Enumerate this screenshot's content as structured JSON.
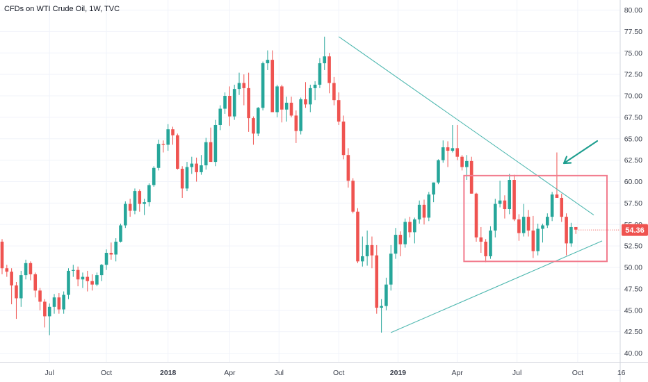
{
  "chart_data": {
    "type": "candlestick",
    "title": "CFDs on WTI Crude Oil, 1W, TVC",
    "y_ticks": [
      "80.00",
      "77.50",
      "75.00",
      "72.50",
      "70.00",
      "67.50",
      "65.00",
      "62.50",
      "60.00",
      "57.50",
      "55.00",
      "52.50",
      "50.00",
      "47.50",
      "45.00",
      "42.50",
      "40.00"
    ],
    "ylim": [
      38.8,
      81.1
    ],
    "x_ticks": [
      {
        "label": "Jul",
        "bold": false
      },
      {
        "label": "Oct",
        "bold": false
      },
      {
        "label": "2018",
        "bold": true
      },
      {
        "label": "Apr",
        "bold": false
      },
      {
        "label": "Jul",
        "bold": false
      },
      {
        "label": "Oct",
        "bold": false
      },
      {
        "label": "2019",
        "bold": true
      },
      {
        "label": "Apr",
        "bold": false
      },
      {
        "label": "Jul",
        "bold": false
      },
      {
        "label": "Oct",
        "bold": false
      },
      {
        "label": "16",
        "bold": false
      }
    ],
    "last_price": "54.36",
    "grid": true,
    "colors": {
      "up": "#26a69a",
      "down": "#ef5350",
      "trendline": "#4fb8b0",
      "box": "#f27c8e",
      "arrow": "#1e9e8f",
      "price_tag": "#ef5350"
    },
    "candles": [
      [
        53.0,
        53.3,
        49.2,
        49.9
      ],
      [
        49.9,
        50.3,
        48.9,
        49.5
      ],
      [
        49.5,
        49.9,
        45.7,
        47.9
      ],
      [
        47.9,
        48.3,
        44.0,
        46.4
      ],
      [
        46.4,
        49.6,
        45.4,
        49.1
      ],
      [
        49.1,
        50.9,
        48.6,
        50.5
      ],
      [
        50.5,
        50.7,
        48.5,
        49.2
      ],
      [
        49.2,
        49.4,
        46.5,
        47.3
      ],
      [
        47.3,
        47.6,
        45.0,
        46.0
      ],
      [
        46.0,
        46.3,
        43.0,
        44.3
      ],
      [
        44.3,
        45.8,
        42.1,
        45.4
      ],
      [
        45.4,
        46.9,
        44.6,
        46.5
      ],
      [
        46.5,
        47.0,
        44.6,
        45.1
      ],
      [
        45.1,
        47.2,
        44.6,
        46.8
      ],
      [
        46.8,
        49.9,
        46.3,
        49.6
      ],
      [
        49.6,
        50.3,
        48.9,
        49.7
      ],
      [
        49.7,
        50.1,
        47.8,
        48.6
      ],
      [
        48.6,
        49.4,
        47.6,
        48.9
      ],
      [
        48.9,
        49.6,
        47.2,
        48.4
      ],
      [
        48.4,
        49.2,
        47.3,
        48.0
      ],
      [
        48.0,
        49.4,
        47.8,
        49.1
      ],
      [
        49.1,
        50.4,
        48.4,
        50.3
      ],
      [
        50.3,
        52.1,
        49.7,
        51.7
      ],
      [
        51.7,
        52.9,
        50.9,
        51.5
      ],
      [
        51.5,
        53.4,
        50.7,
        53.0
      ],
      [
        53.0,
        55.1,
        52.9,
        54.9
      ],
      [
        54.9,
        57.7,
        54.6,
        57.4
      ],
      [
        57.4,
        58.0,
        55.9,
        56.6
      ],
      [
        56.6,
        59.2,
        56.2,
        58.9
      ],
      [
        58.9,
        59.1,
        56.5,
        57.4
      ],
      [
        57.4,
        58.0,
        56.1,
        57.6
      ],
      [
        57.6,
        59.8,
        57.1,
        59.6
      ],
      [
        59.6,
        61.8,
        59.4,
        61.6
      ],
      [
        61.6,
        64.9,
        61.3,
        64.4
      ],
      [
        64.4,
        64.8,
        63.4,
        64.3
      ],
      [
        64.3,
        66.7,
        63.6,
        66.1
      ],
      [
        66.1,
        66.4,
        64.3,
        65.4
      ],
      [
        65.4,
        65.6,
        61.4,
        61.5
      ],
      [
        61.5,
        61.8,
        58.1,
        59.2
      ],
      [
        59.2,
        62.3,
        58.9,
        61.7
      ],
      [
        61.7,
        62.9,
        60.9,
        62.1
      ],
      [
        62.1,
        62.8,
        60.0,
        61.1
      ],
      [
        61.1,
        63.1,
        60.8,
        61.9
      ],
      [
        61.9,
        65.1,
        61.4,
        64.6
      ],
      [
        64.6,
        66.3,
        62.5,
        62.3
      ],
      [
        62.3,
        67.2,
        61.8,
        66.6
      ],
      [
        66.6,
        68.9,
        66.0,
        68.5
      ],
      [
        68.5,
        70.4,
        67.9,
        70.0
      ],
      [
        70.0,
        71.1,
        66.5,
        67.6
      ],
      [
        67.6,
        71.3,
        67.2,
        70.8
      ],
      [
        70.8,
        72.7,
        70.1,
        71.5
      ],
      [
        71.5,
        72.5,
        68.9,
        70.9
      ],
      [
        70.9,
        72.7,
        65.8,
        67.4
      ],
      [
        67.4,
        67.6,
        64.3,
        65.6
      ],
      [
        65.6,
        68.7,
        65.3,
        68.6
      ],
      [
        68.6,
        74.0,
        68.3,
        73.8
      ],
      [
        73.8,
        75.3,
        73.0,
        74.2
      ],
      [
        74.2,
        75.3,
        68.3,
        68.1
      ],
      [
        68.1,
        71.3,
        67.5,
        71.1
      ],
      [
        71.1,
        71.3,
        66.9,
        68.4
      ],
      [
        68.4,
        69.9,
        67.0,
        69.2
      ],
      [
        69.2,
        69.9,
        67.5,
        67.7
      ],
      [
        67.7,
        68.3,
        64.5,
        65.9
      ],
      [
        65.9,
        69.8,
        65.5,
        69.6
      ],
      [
        69.6,
        71.6,
        68.6,
        69.0
      ],
      [
        69.0,
        71.3,
        68.1,
        70.9
      ],
      [
        70.9,
        71.7,
        69.5,
        71.3
      ],
      [
        71.3,
        74.4,
        70.9,
        73.8
      ],
      [
        73.8,
        76.9,
        73.0,
        74.6
      ],
      [
        74.6,
        75.0,
        70.3,
        71.5
      ],
      [
        71.5,
        72.2,
        68.9,
        69.5
      ],
      [
        69.5,
        70.4,
        66.6,
        67.0
      ],
      [
        67.0,
        67.7,
        62.6,
        63.1
      ],
      [
        63.1,
        63.9,
        59.3,
        60.1
      ],
      [
        60.1,
        60.4,
        56.3,
        56.5
      ],
      [
        56.5,
        56.9,
        50.5,
        50.7
      ],
      [
        50.7,
        53.6,
        50.1,
        51.3
      ],
      [
        51.3,
        54.3,
        50.2,
        52.6
      ],
      [
        52.6,
        53.6,
        49.9,
        51.4
      ],
      [
        51.4,
        52.6,
        44.6,
        45.3
      ],
      [
        45.3,
        46.3,
        42.4,
        45.5
      ],
      [
        45.5,
        48.8,
        45.0,
        48.0
      ],
      [
        48.0,
        52.6,
        47.3,
        51.6
      ],
      [
        51.6,
        54.6,
        51.0,
        53.8
      ],
      [
        53.8,
        54.2,
        51.3,
        52.7
      ],
      [
        52.7,
        55.7,
        52.3,
        55.3
      ],
      [
        55.3,
        55.9,
        53.5,
        54.1
      ],
      [
        54.1,
        55.8,
        52.8,
        55.6
      ],
      [
        55.6,
        57.8,
        55.1,
        57.3
      ],
      [
        57.3,
        57.9,
        55.0,
        55.8
      ],
      [
        55.8,
        58.8,
        55.4,
        58.5
      ],
      [
        58.5,
        59.9,
        57.6,
        59.9
      ],
      [
        59.9,
        62.6,
        59.7,
        62.5
      ],
      [
        62.5,
        64.8,
        62.2,
        64.0
      ],
      [
        64.0,
        64.7,
        61.7,
        63.6
      ],
      [
        63.6,
        66.6,
        63.4,
        63.9
      ],
      [
        63.9,
        66.6,
        62.5,
        62.9
      ],
      [
        62.9,
        63.1,
        61.3,
        61.7
      ],
      [
        61.7,
        63.1,
        60.2,
        62.4
      ],
      [
        62.4,
        62.9,
        58.6,
        58.6
      ],
      [
        58.6,
        58.7,
        53.0,
        53.5
      ],
      [
        53.5,
        54.7,
        51.7,
        53.0
      ],
      [
        53.0,
        53.3,
        50.6,
        51.3
      ],
      [
        51.3,
        54.8,
        51.0,
        54.3
      ],
      [
        54.3,
        58.0,
        53.5,
        57.4
      ],
      [
        57.4,
        60.1,
        57.0,
        57.8
      ],
      [
        57.8,
        58.4,
        55.7,
        56.8
      ],
      [
        56.8,
        60.9,
        56.2,
        60.2
      ],
      [
        60.2,
        60.8,
        55.4,
        55.6
      ],
      [
        55.6,
        56.2,
        53.1,
        54.0
      ],
      [
        54.0,
        57.4,
        53.6,
        55.9
      ],
      [
        55.9,
        56.7,
        53.6,
        54.3
      ],
      [
        54.3,
        56.0,
        51.1,
        51.9
      ],
      [
        51.9,
        55.1,
        51.4,
        54.5
      ],
      [
        54.5,
        55.1,
        52.9,
        54.9
      ],
      [
        54.9,
        56.3,
        54.6,
        55.9
      ],
      [
        55.9,
        58.8,
        55.4,
        58.5
      ],
      [
        58.5,
        63.4,
        58.2,
        58.1
      ],
      [
        58.1,
        58.6,
        55.3,
        55.9
      ],
      [
        55.9,
        56.3,
        51.4,
        52.8
      ],
      [
        52.8,
        55.2,
        52.4,
        54.7
      ],
      [
        54.7,
        54.7,
        53.9,
        54.4
      ]
    ],
    "annotations": [
      {
        "type": "trendline",
        "label": "descending resistance"
      },
      {
        "type": "trendline",
        "label": "ascending support"
      },
      {
        "type": "rectangle",
        "label": "range box"
      },
      {
        "type": "arrow",
        "label": "spike marker"
      }
    ]
  }
}
